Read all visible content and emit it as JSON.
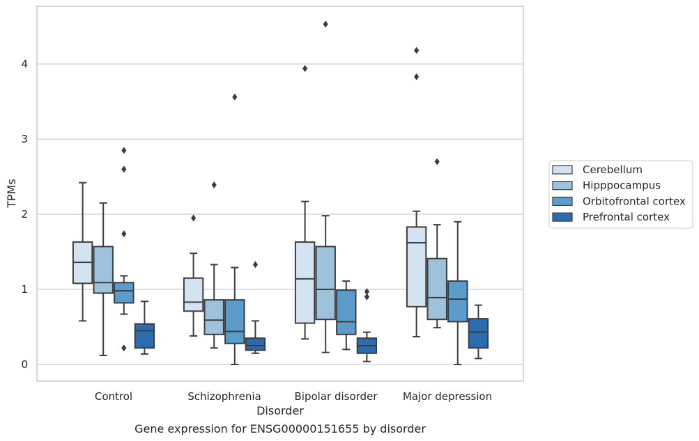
{
  "chart_data": {
    "type": "box",
    "caption": "Gene expression for ENSG00000151655 by disorder",
    "xlabel": "Disorder",
    "ylabel": "TPMs",
    "ylim": [
      -0.22,
      4.8
    ],
    "yticks": [
      0,
      1,
      2,
      3,
      4
    ],
    "grid": "horizontal",
    "legend_position": "right",
    "categories": [
      "Control",
      "Schizophrenia",
      "Bipolar disorder",
      "Major depression"
    ],
    "series": [
      {
        "name": "Cerebellum",
        "color": "#d4e3f2",
        "boxes": [
          {
            "whisker_low": 0.58,
            "q1": 1.08,
            "median": 1.36,
            "q3": 1.63,
            "whisker_high": 2.42,
            "outliers": []
          },
          {
            "whisker_low": 0.38,
            "q1": 0.71,
            "median": 0.83,
            "q3": 1.15,
            "whisker_high": 1.48,
            "outliers": [
              1.95
            ]
          },
          {
            "whisker_low": 0.34,
            "q1": 0.55,
            "median": 1.14,
            "q3": 1.63,
            "whisker_high": 2.17,
            "outliers": [
              3.94
            ]
          },
          {
            "whisker_low": 0.37,
            "q1": 0.77,
            "median": 1.62,
            "q3": 1.83,
            "whisker_high": 2.04,
            "outliers": [
              3.83,
              4.18
            ]
          }
        ]
      },
      {
        "name": "Hipppocampus",
        "color": "#9cc2dc",
        "boxes": [
          {
            "whisker_low": 0.12,
            "q1": 0.95,
            "median": 1.09,
            "q3": 1.57,
            "whisker_high": 2.15,
            "outliers": []
          },
          {
            "whisker_low": 0.22,
            "q1": 0.4,
            "median": 0.59,
            "q3": 0.86,
            "whisker_high": 1.33,
            "outliers": [
              2.39
            ]
          },
          {
            "whisker_low": 0.16,
            "q1": 0.6,
            "median": 1.0,
            "q3": 1.57,
            "whisker_high": 1.98,
            "outliers": [
              4.53
            ]
          },
          {
            "whisker_low": 0.49,
            "q1": 0.6,
            "median": 0.89,
            "q3": 1.41,
            "whisker_high": 1.86,
            "outliers": [
              2.7
            ]
          }
        ]
      },
      {
        "name": "Orbitofrontal cortex",
        "color": "#5b9ccb",
        "boxes": [
          {
            "whisker_low": 0.67,
            "q1": 0.82,
            "median": 0.98,
            "q3": 1.09,
            "whisker_high": 1.18,
            "outliers": [
              0.22,
              1.74,
              2.6,
              2.85
            ]
          },
          {
            "whisker_low": 0.0,
            "q1": 0.28,
            "median": 0.44,
            "q3": 0.86,
            "whisker_high": 1.29,
            "outliers": [
              3.56
            ]
          },
          {
            "whisker_low": 0.2,
            "q1": 0.4,
            "median": 0.57,
            "q3": 0.99,
            "whisker_high": 1.11,
            "outliers": []
          },
          {
            "whisker_low": 0.0,
            "q1": 0.57,
            "median": 0.87,
            "q3": 1.11,
            "whisker_high": 1.9,
            "outliers": []
          }
        ]
      },
      {
        "name": "Prefrontal cortex",
        "color": "#2a6caf",
        "boxes": [
          {
            "whisker_low": 0.14,
            "q1": 0.22,
            "median": 0.45,
            "q3": 0.54,
            "whisker_high": 0.84,
            "outliers": []
          },
          {
            "whisker_low": 0.15,
            "q1": 0.19,
            "median": 0.25,
            "q3": 0.35,
            "whisker_high": 0.58,
            "outliers": [
              1.33
            ]
          },
          {
            "whisker_low": 0.04,
            "q1": 0.15,
            "median": 0.25,
            "q3": 0.35,
            "whisker_high": 0.43,
            "outliers": [
              0.9,
              0.97
            ]
          },
          {
            "whisker_low": 0.08,
            "q1": 0.22,
            "median": 0.43,
            "q3": 0.61,
            "whisker_high": 0.79,
            "outliers": []
          }
        ]
      }
    ]
  }
}
